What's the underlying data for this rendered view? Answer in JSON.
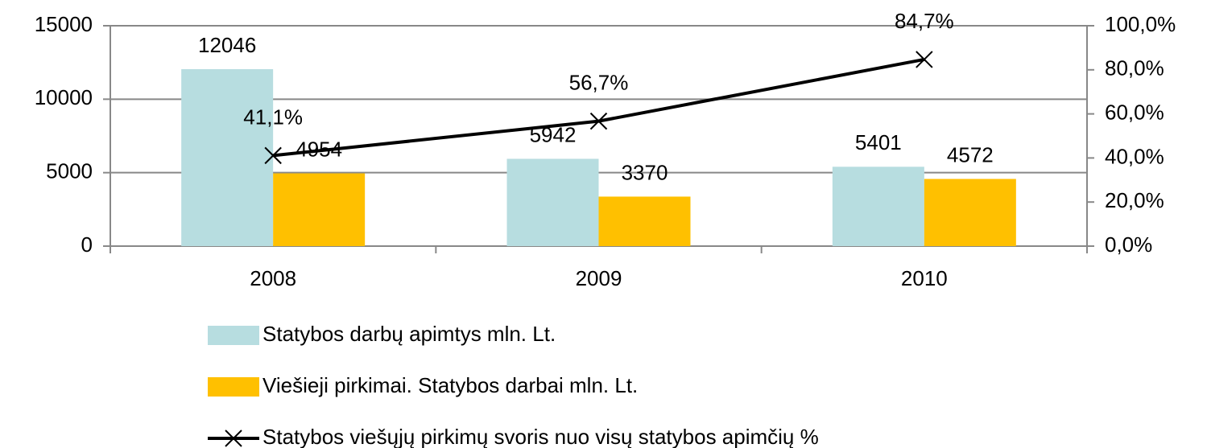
{
  "chart_data": {
    "type": "bar",
    "categories": [
      "2008",
      "2009",
      "2010"
    ],
    "series": [
      {
        "name": "Statybos darbų  apimtys mln. Lt.",
        "color": "#b7dde0",
        "type": "bar",
        "values": [
          12046,
          5942,
          5401
        ]
      },
      {
        "name": "Viešieji pirkimai. Statybos darbai mln. Lt.",
        "color": "#ffc000",
        "type": "bar",
        "values": [
          4954,
          3370,
          4572
        ]
      },
      {
        "name": "Statybos viešųjų pirkimų svoris nuo visų statybos apimčių %",
        "color": "#000000",
        "type": "line",
        "axis": "y2",
        "values": [
          41.1,
          56.7,
          84.7
        ],
        "value_labels": [
          "41,1%",
          "56,7%",
          "84,7%"
        ]
      }
    ],
    "ylim": [
      0,
      15000
    ],
    "yticks": [
      0,
      5000,
      10000,
      15000
    ],
    "y2lim": [
      0,
      100
    ],
    "y2ticks": [
      {
        "value": 0,
        "label": "0,0%"
      },
      {
        "value": 20,
        "label": "20,0%"
      },
      {
        "value": 40,
        "label": "40,0%"
      },
      {
        "value": 60,
        "label": "60,0%"
      },
      {
        "value": 80,
        "label": "80,0%"
      },
      {
        "value": 100,
        "label": "100,0%"
      }
    ],
    "grid": true,
    "legend": "bottom"
  }
}
